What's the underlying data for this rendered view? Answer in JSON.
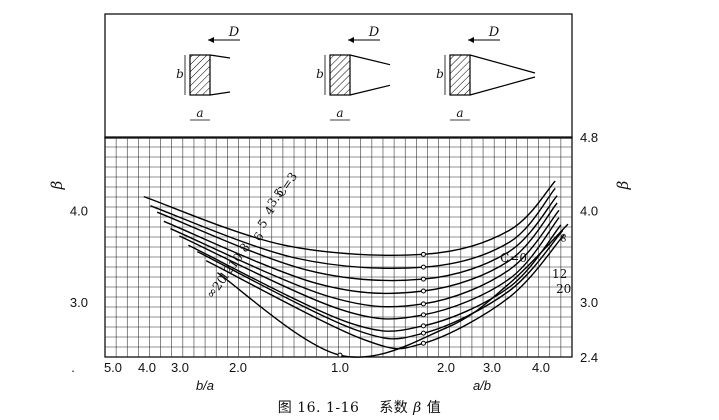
{
  "caption": {
    "prefix": "图 16. 1-16",
    "text": "系数",
    "symbol": "β",
    "suffix": "值"
  },
  "chart_data": {
    "type": "line",
    "title": "",
    "left_axis": {
      "label": "b/a",
      "ticks": [
        5.0,
        4.0,
        3.0,
        2.0,
        1.0
      ],
      "tick_labels": [
        "5.0",
        "4.0",
        "3.0",
        "2.0",
        "1.0"
      ],
      "scale": "reciprocal"
    },
    "right_axis": {
      "label": "a/b",
      "ticks": [
        2.0,
        3.0,
        4.0
      ],
      "tick_labels": [
        "2.0",
        "3.0",
        "4.0"
      ],
      "scale": "log"
    },
    "ylabel": "β",
    "y_ticks_left": [
      "4.0",
      "3.0"
    ],
    "y_ticks_right": [
      "4.8",
      "4.0",
      "3.0",
      "2.4"
    ],
    "ylim": [
      2.4,
      4.8
    ],
    "grid": true,
    "curve_labels_left": [
      "C=3",
      "3.5",
      "4",
      "5",
      "6",
      "8",
      "10",
      "12",
      "20",
      "∞"
    ],
    "curve_labels_right": [
      "C=0",
      "∞",
      "12",
      "20"
    ],
    "series": [
      {
        "c": "3",
        "min_beta": 3.52,
        "min_at": 1.72,
        "points": [
          [
            0.12,
            4.15
          ],
          [
            0.75,
            3.62
          ],
          [
            1.72,
            3.52
          ],
          [
            3.0,
            3.78
          ],
          [
            4.05,
            4.32
          ]
        ]
      },
      {
        "c": "3.5",
        "min_beta": 3.38,
        "min_at": 1.72,
        "points": [
          [
            0.15,
            4.05
          ],
          [
            0.8,
            3.48
          ],
          [
            1.72,
            3.38
          ],
          [
            3.0,
            3.65
          ],
          [
            4.05,
            4.24
          ]
        ]
      },
      {
        "c": "4",
        "min_beta": 3.25,
        "min_at": 1.72,
        "points": [
          [
            0.18,
            3.98
          ],
          [
            0.85,
            3.35
          ],
          [
            1.72,
            3.25
          ],
          [
            3.0,
            3.55
          ],
          [
            4.1,
            4.16
          ]
        ]
      },
      {
        "c": "5",
        "min_beta": 3.12,
        "min_at": 1.72,
        "points": [
          [
            0.21,
            3.88
          ],
          [
            0.9,
            3.2
          ],
          [
            1.72,
            3.12
          ],
          [
            3.0,
            3.45
          ],
          [
            4.1,
            4.08
          ]
        ]
      },
      {
        "c": "6",
        "min_beta": 2.98,
        "min_at": 1.72,
        "points": [
          [
            0.24,
            3.8
          ],
          [
            0.95,
            3.06
          ],
          [
            1.72,
            2.98
          ],
          [
            3.0,
            3.35
          ],
          [
            4.15,
            4.0
          ]
        ]
      },
      {
        "c": "8",
        "min_beta": 2.86,
        "min_at": 1.72,
        "points": [
          [
            0.28,
            3.72
          ],
          [
            1.0,
            2.92
          ],
          [
            1.72,
            2.86
          ],
          [
            3.0,
            3.25
          ],
          [
            4.15,
            3.92
          ]
        ]
      },
      {
        "c": "10",
        "min_beta": 2.74,
        "min_at": 1.72,
        "points": [
          [
            0.32,
            3.62
          ],
          [
            1.05,
            2.78
          ],
          [
            1.72,
            2.74
          ],
          [
            3.0,
            3.16
          ],
          [
            4.2,
            3.84
          ]
        ]
      },
      {
        "c": "12",
        "min_beta": 2.66,
        "min_at": 1.72,
        "points": [
          [
            0.36,
            3.55
          ],
          [
            1.1,
            2.7
          ],
          [
            1.72,
            2.66
          ],
          [
            3.0,
            3.12
          ],
          [
            4.25,
            3.78
          ]
        ]
      },
      {
        "c": "20",
        "min_beta": 2.55,
        "min_at": 1.72,
        "points": [
          [
            0.4,
            3.45
          ],
          [
            1.15,
            2.6
          ],
          [
            1.72,
            2.55
          ],
          [
            3.0,
            3.05
          ],
          [
            4.3,
            3.74
          ]
        ]
      },
      {
        "c": "∞",
        "min_beta": 2.42,
        "min_at": 1.0,
        "points": [
          [
            0.45,
            3.32
          ],
          [
            1.0,
            2.42
          ],
          [
            2.0,
            2.72
          ],
          [
            3.0,
            3.2
          ],
          [
            4.4,
            3.85
          ]
        ]
      }
    ],
    "sketch": {
      "label_D": "D",
      "label_a": "a",
      "label_b": "b"
    }
  }
}
